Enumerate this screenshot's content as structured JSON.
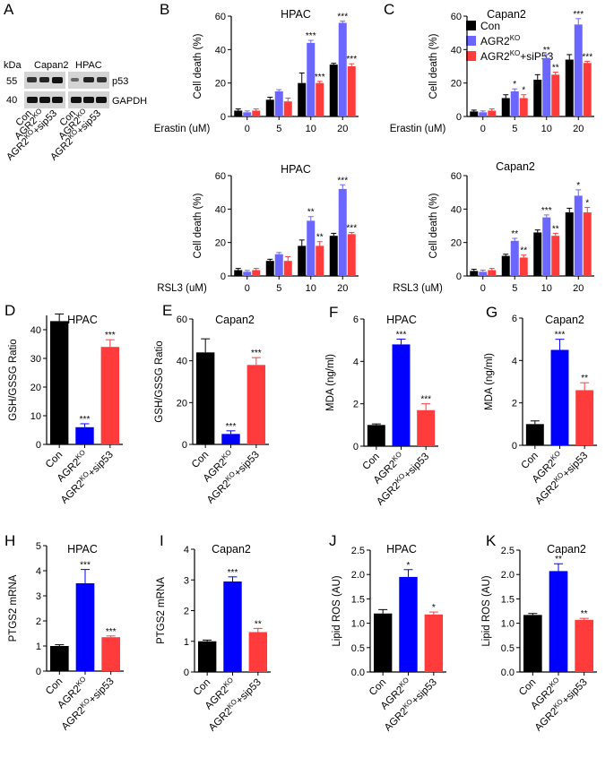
{
  "colors": {
    "con": "#000000",
    "ko_bright": "#0000ff",
    "ko_light": "#6b66ff",
    "sip53": "#ff3b3b"
  },
  "legend": {
    "con": "Con",
    "ko": "AGR2",
    "ko_sup": "KO",
    "sip53": "AGR2",
    "sip53_sup": "KO",
    "sip53_tail": "+siP53"
  },
  "blot": {
    "letter": "A",
    "kda": "kDa",
    "mw_top": "55",
    "mw_bottom": "40",
    "col_capan2": "Capan2",
    "col_hpac": "HPAC",
    "band_top": "p53",
    "band_bottom": "GAPDH",
    "lanes": [
      "Con",
      "AGR2",
      "AGR2"
    ],
    "lane_sup": [
      "",
      "KO",
      "KO"
    ],
    "lane_tail": [
      "",
      "",
      "+sip53"
    ]
  },
  "chart_data": [
    {
      "id": "B1",
      "letter": "B",
      "type": "bar",
      "title": "HPAC",
      "ylabel": "Cell death (%)",
      "xlabel": "Erastin (uM)",
      "categories": [
        "0",
        "5",
        "10",
        "20"
      ],
      "ylim": [
        0,
        60
      ],
      "yticks": [
        0,
        20,
        40,
        60
      ],
      "series": [
        {
          "name": "Con",
          "values": [
            3.5,
            10,
            20,
            31
          ],
          "errors": [
            1,
            1.5,
            6,
            0.8
          ],
          "stars": [
            "",
            "",
            "",
            ""
          ]
        },
        {
          "name": "AGR2KO",
          "values": [
            2.5,
            15,
            44,
            56
          ],
          "errors": [
            0.8,
            1,
            1.5,
            1
          ],
          "stars": [
            "",
            "",
            "***",
            "***"
          ]
        },
        {
          "name": "AGR2KO+siP53",
          "values": [
            3.5,
            9,
            20,
            30
          ],
          "errors": [
            1,
            2,
            1,
            1.5
          ],
          "stars": [
            "",
            "",
            "***",
            "***"
          ]
        }
      ]
    },
    {
      "id": "B2",
      "letter": "",
      "type": "bar",
      "title": "HPAC",
      "ylabel": "Cell death (%)",
      "xlabel": "RSL3 (uM)",
      "categories": [
        "0",
        "5",
        "10",
        "20"
      ],
      "ylim": [
        0,
        60
      ],
      "yticks": [
        0,
        20,
        40,
        60
      ],
      "series": [
        {
          "name": "Con",
          "values": [
            3.5,
            9,
            18,
            24
          ],
          "errors": [
            1,
            1,
            3.5,
            1.5
          ],
          "stars": [
            "",
            "",
            "",
            ""
          ]
        },
        {
          "name": "AGR2KO",
          "values": [
            2.5,
            13,
            33,
            52
          ],
          "errors": [
            0.8,
            1,
            2.5,
            2.5
          ],
          "stars": [
            "",
            "",
            "**",
            "***"
          ]
        },
        {
          "name": "AGR2KO+siP53",
          "values": [
            3.5,
            9,
            18,
            25
          ],
          "errors": [
            1,
            2.5,
            2.5,
            1
          ],
          "stars": [
            "",
            "",
            "**",
            "***"
          ]
        }
      ]
    },
    {
      "id": "C1",
      "letter": "C",
      "type": "bar",
      "title": "Capan2",
      "ylabel": "Cell death (%)",
      "xlabel": "Erastin (uM)",
      "categories": [
        "0",
        "5",
        "10",
        "20"
      ],
      "ylim": [
        0,
        60
      ],
      "yticks": [
        0,
        20,
        40,
        60
      ],
      "series": [
        {
          "name": "Con",
          "values": [
            3,
            11,
            22,
            34
          ],
          "errors": [
            0.8,
            2,
            3,
            3
          ],
          "stars": [
            "",
            "",
            "",
            ""
          ]
        },
        {
          "name": "AGR2KO",
          "values": [
            2.5,
            15,
            35,
            55
          ],
          "errors": [
            0.8,
            1.5,
            2,
            3.5
          ],
          "stars": [
            "",
            "*",
            "**",
            "***"
          ]
        },
        {
          "name": "AGR2KO+siP53",
          "values": [
            3.5,
            11,
            25,
            32
          ],
          "errors": [
            1,
            2,
            1.5,
            1
          ],
          "stars": [
            "",
            "*",
            "**",
            "***"
          ]
        }
      ]
    },
    {
      "id": "C2",
      "letter": "",
      "type": "bar",
      "title": "Capan2",
      "ylabel": "Cell death (%)",
      "xlabel": "RSL3 (uM)",
      "categories": [
        "0",
        "5",
        "10",
        "20"
      ],
      "ylim": [
        0,
        60
      ],
      "yticks": [
        0,
        20,
        40,
        60
      ],
      "series": [
        {
          "name": "Con",
          "values": [
            3,
            12,
            26,
            38
          ],
          "errors": [
            1,
            1,
            1.5,
            2.5
          ],
          "stars": [
            "",
            "",
            "",
            ""
          ]
        },
        {
          "name": "AGR2KO",
          "values": [
            2.5,
            21,
            35,
            48
          ],
          "errors": [
            1,
            1.5,
            1.5,
            3.5
          ],
          "stars": [
            "",
            "**",
            "***",
            "*"
          ]
        },
        {
          "name": "AGR2KO+siP53",
          "values": [
            3.5,
            11,
            24,
            38
          ],
          "errors": [
            1,
            1.5,
            1.5,
            3
          ],
          "stars": [
            "",
            "**",
            "**",
            "*"
          ]
        }
      ]
    },
    {
      "id": "D",
      "letter": "D",
      "type": "bar",
      "title": "HPAC",
      "ylabel": "GSH/GSSG Ratio",
      "categories": [
        "Con",
        "AGR2KO",
        "AGR2KO+sip53"
      ],
      "ylim": [
        0,
        45
      ],
      "yticks": [
        0,
        10,
        20,
        30,
        40
      ],
      "values": [
        43,
        6,
        34
      ],
      "errors": [
        2.5,
        1.2,
        2.5
      ],
      "stars": [
        "",
        "***",
        "***"
      ],
      "ko_color": "ko_bright"
    },
    {
      "id": "E",
      "letter": "E",
      "type": "bar",
      "title": "Capan2",
      "ylabel": "GSH/GSSG Ratio",
      "categories": [
        "Con",
        "AGR2KO",
        "AGR2KO+sip53"
      ],
      "ylim": [
        0,
        60
      ],
      "yticks": [
        0,
        20,
        40,
        60
      ],
      "values": [
        44,
        5,
        38
      ],
      "errors": [
        6.5,
        1.5,
        3.5
      ],
      "stars": [
        "",
        "***",
        "***"
      ],
      "ko_color": "ko_bright"
    },
    {
      "id": "F",
      "letter": "F",
      "type": "bar",
      "title": "HPAC",
      "ylabel": "MDA (ng/ml)",
      "categories": [
        "Con",
        "AGR2KO",
        "AGR2KO+sip53"
      ],
      "ylim": [
        0,
        6
      ],
      "yticks": [
        0,
        2,
        4,
        6
      ],
      "values": [
        1,
        4.8,
        1.7
      ],
      "errors": [
        0.05,
        0.25,
        0.3
      ],
      "stars": [
        "",
        "***",
        "***"
      ],
      "ko_color": "ko_bright"
    },
    {
      "id": "G",
      "letter": "G",
      "type": "bar",
      "title": "Capan2",
      "ylabel": "MDA (ng/ml)",
      "categories": [
        "Con",
        "AGR2KO",
        "AGR2KO+sip53"
      ],
      "ylim": [
        0,
        6
      ],
      "yticks": [
        0,
        2,
        4,
        6
      ],
      "values": [
        1,
        4.5,
        2.6
      ],
      "errors": [
        0.15,
        0.5,
        0.35
      ],
      "stars": [
        "",
        "***",
        "**"
      ],
      "ko_color": "ko_bright"
    },
    {
      "id": "H",
      "letter": "H",
      "type": "bar",
      "title": "HPAC",
      "ylabel": "PTGS2 mRNA",
      "categories": [
        "Con",
        "AGR2KO",
        "AGR2KO+sip53"
      ],
      "ylim": [
        0,
        5
      ],
      "yticks": [
        0,
        1,
        2,
        3,
        4,
        5
      ],
      "values": [
        1,
        3.5,
        1.35
      ],
      "errors": [
        0.05,
        0.55,
        0.05
      ],
      "stars": [
        "",
        "***",
        "***"
      ],
      "ko_color": "ko_bright"
    },
    {
      "id": "I",
      "letter": "I",
      "type": "bar",
      "title": "Capan2",
      "ylabel": "PTGS2 mRNA",
      "categories": [
        "Con",
        "AGR2KO",
        "AGR2KO+sip53"
      ],
      "ylim": [
        0,
        4
      ],
      "yticks": [
        0,
        1,
        2,
        3,
        4
      ],
      "values": [
        1,
        2.95,
        1.3
      ],
      "errors": [
        0.04,
        0.15,
        0.12
      ],
      "stars": [
        "",
        "***",
        "**"
      ],
      "ko_color": "ko_bright"
    },
    {
      "id": "J",
      "letter": "J",
      "type": "bar",
      "title": "HPAC",
      "ylabel": "Lipid ROS (AU)",
      "categories": [
        "Con",
        "AGR2KO",
        "AGR2KO+sip53"
      ],
      "ylim": [
        0,
        2.5
      ],
      "yticks": [
        0.0,
        0.5,
        1.0,
        1.5,
        2.0,
        2.5
      ],
      "values": [
        1.2,
        1.95,
        1.18
      ],
      "errors": [
        0.08,
        0.15,
        0.05
      ],
      "stars": [
        "",
        "*",
        "*"
      ],
      "ko_color": "ko_bright"
    },
    {
      "id": "K",
      "letter": "K",
      "type": "bar",
      "title": "Capan2",
      "ylabel": "Lipid ROS (AU)",
      "categories": [
        "Con",
        "AGR2KO",
        "AGR2KO+sip53"
      ],
      "ylim": [
        0,
        2.5
      ],
      "yticks": [
        0.0,
        0.5,
        1.0,
        1.5,
        2.0,
        2.5
      ],
      "values": [
        1.17,
        2.07,
        1.07
      ],
      "errors": [
        0.03,
        0.15,
        0.03
      ],
      "stars": [
        "",
        "**",
        "**"
      ],
      "ko_color": "ko_bright"
    }
  ]
}
